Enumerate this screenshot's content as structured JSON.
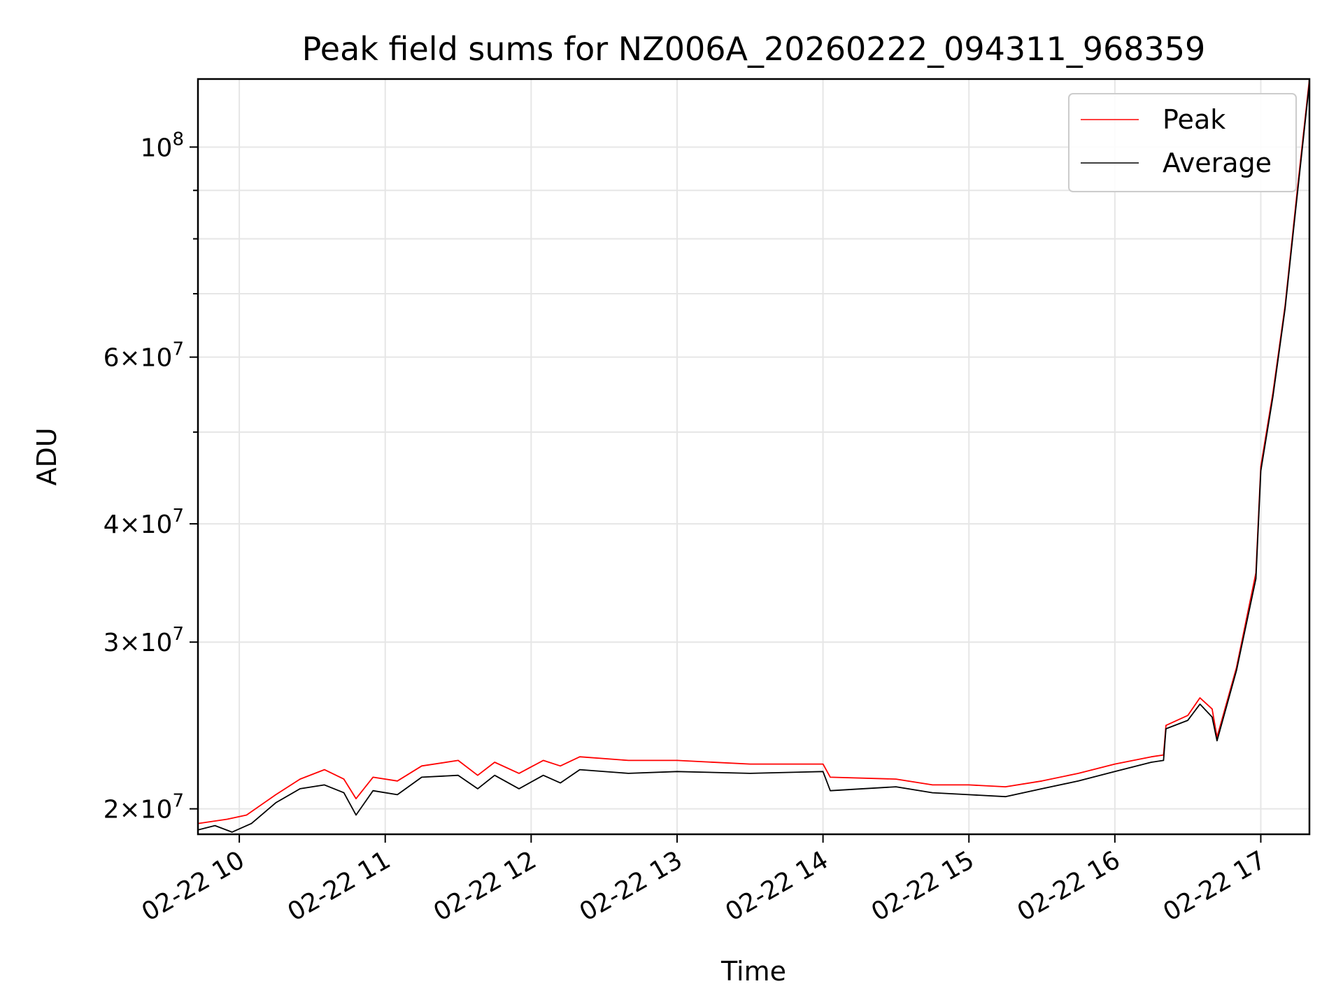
{
  "chart_data": {
    "type": "line",
    "title": "Peak field sums for NZ006A_20260222_094311_968359",
    "xlabel": "Time",
    "ylabel": "ADU",
    "y_scale": "log",
    "ylim": [
      18800000,
      118000000
    ],
    "xlim": [
      "2026-02-22 09:43",
      "2026-02-22 17:20"
    ],
    "x_ticks": [
      {
        "t": "2026-02-22 10:00",
        "label": "02-22 10"
      },
      {
        "t": "2026-02-22 11:00",
        "label": "02-22 11"
      },
      {
        "t": "2026-02-22 12:00",
        "label": "02-22 12"
      },
      {
        "t": "2026-02-22 13:00",
        "label": "02-22 13"
      },
      {
        "t": "2026-02-22 14:00",
        "label": "02-22 14"
      },
      {
        "t": "2026-02-22 15:00",
        "label": "02-22 15"
      },
      {
        "t": "2026-02-22 16:00",
        "label": "02-22 16"
      },
      {
        "t": "2026-02-22 17:00",
        "label": "02-22 17"
      }
    ],
    "y_ticks_major": [
      {
        "value": 20000000,
        "coef": "2",
        "exp": "7"
      },
      {
        "value": 30000000,
        "coef": "3",
        "exp": "7"
      },
      {
        "value": 40000000,
        "coef": "4",
        "exp": "7"
      },
      {
        "value": 60000000,
        "coef": "6",
        "exp": "7"
      },
      {
        "value": 100000000,
        "coef": "",
        "exp": "8"
      }
    ],
    "y_ticks_minor": [
      50000000,
      70000000,
      80000000,
      90000000
    ],
    "grid": true,
    "legend_position": "top-right",
    "series": [
      {
        "name": "Peak",
        "color": "#ff0000",
        "x": [
          "2026-02-22 09:43",
          "2026-02-22 09:55",
          "2026-02-22 10:03",
          "2026-02-22 10:15",
          "2026-02-22 10:25",
          "2026-02-22 10:35",
          "2026-02-22 10:43",
          "2026-02-22 10:48",
          "2026-02-22 10:55",
          "2026-02-22 11:05",
          "2026-02-22 11:15",
          "2026-02-22 11:30",
          "2026-02-22 11:38",
          "2026-02-22 11:45",
          "2026-02-22 11:55",
          "2026-02-22 12:05",
          "2026-02-22 12:12",
          "2026-02-22 12:20",
          "2026-02-22 12:40",
          "2026-02-22 13:00",
          "2026-02-22 13:30",
          "2026-02-22 14:00",
          "2026-02-22 14:03",
          "2026-02-22 14:30",
          "2026-02-22 14:45",
          "2026-02-22 15:00",
          "2026-02-22 15:15",
          "2026-02-22 15:30",
          "2026-02-22 15:45",
          "2026-02-22 16:00",
          "2026-02-22 16:15",
          "2026-02-22 16:20",
          "2026-02-22 16:21",
          "2026-02-22 16:30",
          "2026-02-22 16:35",
          "2026-02-22 16:40",
          "2026-02-22 16:42",
          "2026-02-22 16:50",
          "2026-02-22 16:58",
          "2026-02-22 17:00",
          "2026-02-22 17:05",
          "2026-02-22 17:10",
          "2026-02-22 17:15",
          "2026-02-22 17:20"
        ],
        "values": [
          19300000,
          19500000,
          19700000,
          20700000,
          21500000,
          22000000,
          21500000,
          20500000,
          21600000,
          21400000,
          22200000,
          22500000,
          21700000,
          22400000,
          21800000,
          22500000,
          22200000,
          22700000,
          22500000,
          22500000,
          22300000,
          22300000,
          21600000,
          21500000,
          21200000,
          21200000,
          21100000,
          21400000,
          21800000,
          22300000,
          22700000,
          22800000,
          24500000,
          25100000,
          26200000,
          25500000,
          23800000,
          28200000,
          35500000,
          46000000,
          55000000,
          68000000,
          90000000,
          118000000
        ]
      },
      {
        "name": "Average",
        "color": "#000000",
        "x": [
          "2026-02-22 09:43",
          "2026-02-22 09:50",
          "2026-02-22 09:57",
          "2026-02-22 10:05",
          "2026-02-22 10:15",
          "2026-02-22 10:25",
          "2026-02-22 10:35",
          "2026-02-22 10:43",
          "2026-02-22 10:48",
          "2026-02-22 10:55",
          "2026-02-22 11:05",
          "2026-02-22 11:15",
          "2026-02-22 11:30",
          "2026-02-22 11:38",
          "2026-02-22 11:45",
          "2026-02-22 11:55",
          "2026-02-22 12:05",
          "2026-02-22 12:12",
          "2026-02-22 12:20",
          "2026-02-22 12:40",
          "2026-02-22 13:00",
          "2026-02-22 13:30",
          "2026-02-22 14:00",
          "2026-02-22 14:03",
          "2026-02-22 14:30",
          "2026-02-22 14:45",
          "2026-02-22 15:00",
          "2026-02-22 15:15",
          "2026-02-22 15:30",
          "2026-02-22 15:45",
          "2026-02-22 16:00",
          "2026-02-22 16:15",
          "2026-02-22 16:20",
          "2026-02-22 16:21",
          "2026-02-22 16:30",
          "2026-02-22 16:35",
          "2026-02-22 16:40",
          "2026-02-22 16:42",
          "2026-02-22 16:50",
          "2026-02-22 16:58",
          "2026-02-22 17:00",
          "2026-02-22 17:05",
          "2026-02-22 17:10",
          "2026-02-22 17:15",
          "2026-02-22 17:20"
        ],
        "values": [
          19000000,
          19200000,
          18900000,
          19300000,
          20300000,
          21000000,
          21200000,
          20800000,
          19700000,
          20900000,
          20700000,
          21600000,
          21700000,
          21000000,
          21700000,
          21000000,
          21700000,
          21300000,
          22000000,
          21800000,
          21900000,
          21800000,
          21900000,
          20900000,
          21100000,
          20800000,
          20700000,
          20600000,
          21000000,
          21400000,
          21900000,
          22400000,
          22500000,
          24300000,
          24800000,
          25800000,
          25000000,
          23600000,
          28000000,
          35000000,
          45500000,
          54500000,
          67500000,
          89000000,
          117000000
        ]
      }
    ]
  }
}
